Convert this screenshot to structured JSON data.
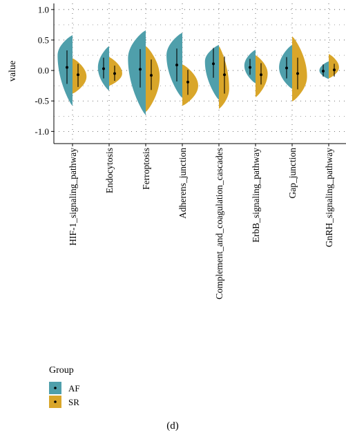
{
  "chart_data": {
    "type": "split-violin",
    "ylabel": "value",
    "ylim": [
      -1.2,
      1.1
    ],
    "yticks": [
      1.0,
      0.5,
      0.0,
      -0.5,
      -1.0
    ],
    "ytick_labels": [
      "1.0",
      "0.5",
      "0.0",
      "-0.5",
      "-1.0"
    ],
    "grid": "dotted",
    "categories": [
      "HIF-1_signaling_pathway",
      "Endocytosis",
      "Ferroptosis",
      "Adherens_junction",
      "Complement_and_coagulation_cascades",
      "ErbB_signaling_pathway",
      "Gap_junction",
      "GnRH_signaling_pathway"
    ],
    "series": [
      {
        "name": "AF",
        "color": "#4f9fab",
        "side": "left",
        "violins": [
          {
            "min": -0.58,
            "max": 0.58,
            "mode": 0.25,
            "width": 0.8,
            "mean": 0.05,
            "lo": -0.22,
            "hi": 0.33
          },
          {
            "min": -0.33,
            "max": 0.4,
            "mode": 0.05,
            "width": 0.6,
            "mean": 0.03,
            "lo": -0.13,
            "hi": 0.21
          },
          {
            "min": -0.73,
            "max": 0.66,
            "mode": 0.2,
            "width": 0.95,
            "mean": 0.02,
            "lo": -0.28,
            "hi": 0.35
          },
          {
            "min": -0.45,
            "max": 0.62,
            "mode": 0.25,
            "width": 0.85,
            "mean": 0.09,
            "lo": -0.18,
            "hi": 0.36
          },
          {
            "min": -0.48,
            "max": 0.42,
            "mode": 0.15,
            "width": 0.75,
            "mean": 0.11,
            "lo": -0.12,
            "hi": 0.37
          },
          {
            "min": -0.21,
            "max": 0.34,
            "mode": 0.08,
            "width": 0.6,
            "mean": 0.05,
            "lo": -0.07,
            "hi": 0.19
          },
          {
            "min": -0.3,
            "max": 0.42,
            "mode": 0.05,
            "width": 0.7,
            "mean": 0.04,
            "lo": -0.13,
            "hi": 0.22
          },
          {
            "min": -0.14,
            "max": 0.15,
            "mode": 0.0,
            "width": 0.5,
            "mean": -0.01,
            "lo": -0.1,
            "hi": 0.1
          }
        ]
      },
      {
        "name": "SR",
        "color": "#d9a62a",
        "side": "right",
        "violins": [
          {
            "min": -0.38,
            "max": 0.2,
            "mode": -0.1,
            "width": 0.75,
            "mean": -0.07,
            "lo": -0.27,
            "hi": 0.11
          },
          {
            "min": -0.25,
            "max": 0.22,
            "mode": -0.05,
            "width": 0.7,
            "mean": -0.05,
            "lo": -0.17,
            "hi": 0.08
          },
          {
            "min": -0.68,
            "max": 0.4,
            "mode": -0.1,
            "width": 0.75,
            "mean": -0.08,
            "lo": -0.32,
            "hi": 0.18
          },
          {
            "min": -0.58,
            "max": 0.1,
            "mode": -0.25,
            "width": 0.85,
            "mean": -0.19,
            "lo": -0.4,
            "hi": 0.01
          },
          {
            "min": -0.63,
            "max": 0.4,
            "mode": -0.3,
            "width": 0.55,
            "mean": -0.07,
            "lo": -0.38,
            "hi": 0.23
          },
          {
            "min": -0.44,
            "max": 0.25,
            "mode": -0.05,
            "width": 0.65,
            "mean": -0.07,
            "lo": -0.23,
            "hi": 0.12
          },
          {
            "min": -0.51,
            "max": 0.56,
            "mode": -0.1,
            "width": 0.8,
            "mean": -0.05,
            "lo": -0.31,
            "hi": 0.21
          },
          {
            "min": -0.13,
            "max": 0.27,
            "mode": 0.05,
            "width": 0.55,
            "mean": 0.01,
            "lo": -0.1,
            "hi": 0.11
          }
        ]
      }
    ],
    "legend": {
      "title": "Group",
      "position": "bottom-left"
    }
  },
  "caption": "(d)"
}
